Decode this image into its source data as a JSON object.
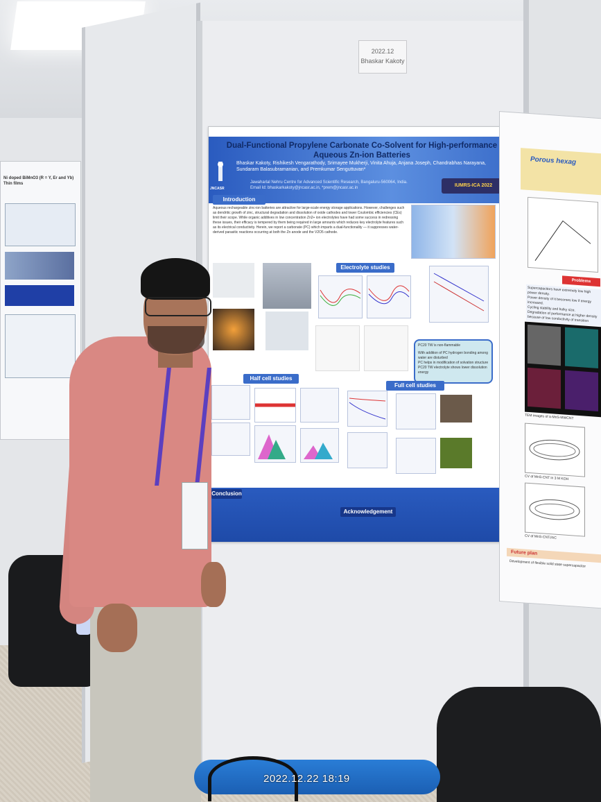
{
  "scene": {
    "timestamp": "2022.12.22 18:19",
    "booth_tag": [
      "2022.12",
      "Bhaskar Kakoty"
    ]
  },
  "poster": {
    "title": "Dual-Functional Propylene Carbonate Co-Solvent for High-performance Aqueous Zn-ion Batteries",
    "authors": "Bhaskar Kakoty, Rishikesh Vengarathody, Srimayee Mukherji, Vinita Ahuja, Anjana Joseph, Chandrabhas Narayana, Sundaram Balasubramanian, and Premkumar Senguttuvan*",
    "affiliation": "Jawaharlal Nehru Centre for Advanced Scientific Research, Bangaluru-560064, India.",
    "email": "Email Id: bhaskarkakoty@jncasr.ac.in, *prem@jncasr.ac.in",
    "conference_logo": "IUMRS-ICA 2022",
    "institute_logo": "JNCASR",
    "sections": {
      "introduction": "Introduction",
      "electrolyte": "Electrolyte studies",
      "half_cell": "Half cell studies",
      "full_cell": "Full cell studies",
      "conclusion": "Conclusion",
      "acknowledgement": "Acknowledgement"
    },
    "intro_text": "Aqueous rechargeable zinc-ion batteries are attractive for large-scale energy storage applications. However, challenges such as dendritic growth of zinc, structural degradation and dissolution of oxide cathodes and lower Coulombic efficiencies (CEs) limit their scope. While organic additives in low concentration Zn2+ ion electrolytes have had some success in redressing these issues, their efficacy is tempered by them being required in large amounts which reduces key electrolyte features such as its electrical conductivity. Herein, we report a carbonate (PC) which imparts a dual-functionality — it suppresses water-derived parasitic reactions occurring at both the Zn anode and the V2O5 cathode.",
    "bullets": [
      "PC20 TW is non-flammable",
      "With addition of PC hydrogen bonding among water are disturbed",
      "PC helps in modification of solvation structure",
      "PC20 TW electrolyte shows lower dissolution energy"
    ],
    "labels": [
      "PC0 TW",
      "PC20 TW",
      "PC20 TW"
    ]
  },
  "poster_right": {
    "title": "Porous hexag",
    "heading": "Problems statement",
    "bullets": [
      "Supercapacitors have extremely low high power density.",
      "Power density of it becomes low if energy increased.",
      "Cycling stability and bulky size.",
      "Degradation of performance at higher density because of low conductivity of transition"
    ],
    "caption_tem": "TEM images of a-MnS-MWCNT",
    "caption_cv1": "CV of MnS-CNT in 3 M KOH",
    "caption_cv2": "CV of MnS-CNT//AC",
    "future": "Future plan",
    "future_text": "Development of flexible solid state supercapacitor"
  },
  "poster_left": {
    "title": "Ni doped BiMnO3 (R = Y, Er and Yb) Thin films"
  }
}
